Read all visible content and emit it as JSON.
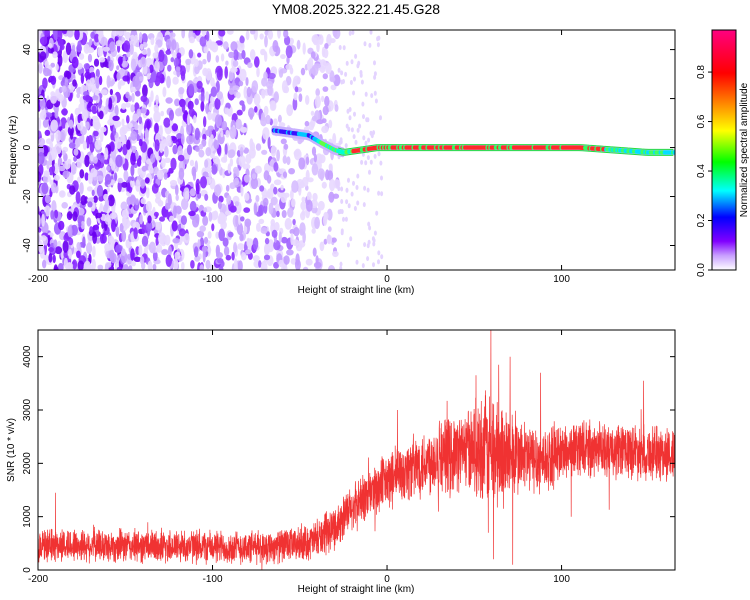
{
  "title": "YM08.2025.322.21.45.G28",
  "chart_data": [
    {
      "type": "heatmap",
      "panel": "spectrogram",
      "xlabel": "Height of straight line (km)",
      "ylabel": "Frequency (Hz)",
      "xlim": [
        -200,
        165
      ],
      "ylim": [
        -50,
        48
      ],
      "xticks": [
        -200,
        -100,
        0,
        100
      ],
      "yticks": [
        -40,
        -20,
        0,
        20,
        40
      ],
      "colorbar": {
        "label": "Normalized spectral amplitude",
        "range": [
          0,
          0.97
        ],
        "ticks": [
          "0.0",
          "0.2",
          "0.4",
          "0.6",
          "0.8"
        ],
        "tick_values": [
          0.0,
          0.2,
          0.4,
          0.6,
          0.8
        ],
        "colors": [
          "#ffffff",
          "#8000ff",
          "#0000ff",
          "#00ffff",
          "#00ff00",
          "#ffff00",
          "#ff8000",
          "#ff0000",
          "#ff00ff"
        ]
      },
      "noise_region_x": [
        -200,
        -28
      ],
      "noise_freq_range": [
        -50,
        48
      ],
      "signal_track": [
        {
          "x": -65,
          "f": 7
        },
        {
          "x": -55,
          "f": 6
        },
        {
          "x": -45,
          "f": 5
        },
        {
          "x": -38,
          "f": 2
        },
        {
          "x": -30,
          "f": -1
        },
        {
          "x": -25,
          "f": -2
        },
        {
          "x": -15,
          "f": -1
        },
        {
          "x": -5,
          "f": 0
        },
        {
          "x": 0,
          "f": 0
        },
        {
          "x": 20,
          "f": 0
        },
        {
          "x": 45,
          "f": 0
        },
        {
          "x": 60,
          "f": 0
        },
        {
          "x": 90,
          "f": 0
        },
        {
          "x": 110,
          "f": 0
        },
        {
          "x": 130,
          "f": -1
        },
        {
          "x": 150,
          "f": -2
        },
        {
          "x": 165,
          "f": -2
        }
      ]
    },
    {
      "type": "line",
      "panel": "snr",
      "xlabel": "Height of straight line (km)",
      "ylabel": "SNR (10 * v/v)",
      "xlim": [
        -200,
        165
      ],
      "ylim": [
        0,
        4500
      ],
      "xticks": [
        -200,
        -100,
        0,
        100
      ],
      "yticks": [
        0,
        1000,
        2000,
        3000,
        4000
      ],
      "line_color": "#f03232",
      "series": [
        {
          "name": "SNR",
          "x": [
            -200,
            -180,
            -160,
            -140,
            -120,
            -100,
            -80,
            -60,
            -50,
            -40,
            -30,
            -20,
            -10,
            0,
            10,
            20,
            30,
            40,
            50,
            60,
            70,
            80,
            90,
            100,
            110,
            120,
            130,
            140,
            150,
            165
          ],
          "values": [
            450,
            470,
            460,
            440,
            450,
            430,
            420,
            450,
            480,
            560,
            800,
            1150,
            1450,
            1650,
            1850,
            2000,
            2150,
            2200,
            2300,
            2250,
            2150,
            2100,
            2050,
            2200,
            2300,
            2250,
            2200,
            2250,
            2200,
            2150
          ]
        }
      ],
      "spread": [
        {
          "x": -200,
          "amp": 300
        },
        {
          "x": -50,
          "amp": 300
        },
        {
          "x": -20,
          "amp": 420
        },
        {
          "x": 20,
          "amp": 600
        },
        {
          "x": 45,
          "amp": 700
        },
        {
          "x": 60,
          "amp": 1100
        },
        {
          "x": 75,
          "amp": 700
        },
        {
          "x": 100,
          "amp": 500
        },
        {
          "x": 165,
          "amp": 500
        }
      ],
      "peaks": [
        {
          "x": 59.5,
          "y": 4500
        },
        {
          "x": 61.0,
          "y": 200
        },
        {
          "x": 58.0,
          "y": 700
        },
        {
          "x": 70.5,
          "y": 4000
        },
        {
          "x": 72.0,
          "y": 100
        },
        {
          "x": 88.0,
          "y": 3700
        },
        {
          "x": 51.0,
          "y": 3650
        },
        {
          "x": 64.0,
          "y": 3850
        },
        {
          "x": 147.0,
          "y": 3550
        },
        {
          "x": 105.5,
          "y": 1000
        },
        {
          "x": 30.0,
          "y": 2800
        },
        {
          "x": -190.0,
          "y": 1450
        },
        {
          "x": 6.0,
          "y": 3000
        }
      ]
    }
  ]
}
